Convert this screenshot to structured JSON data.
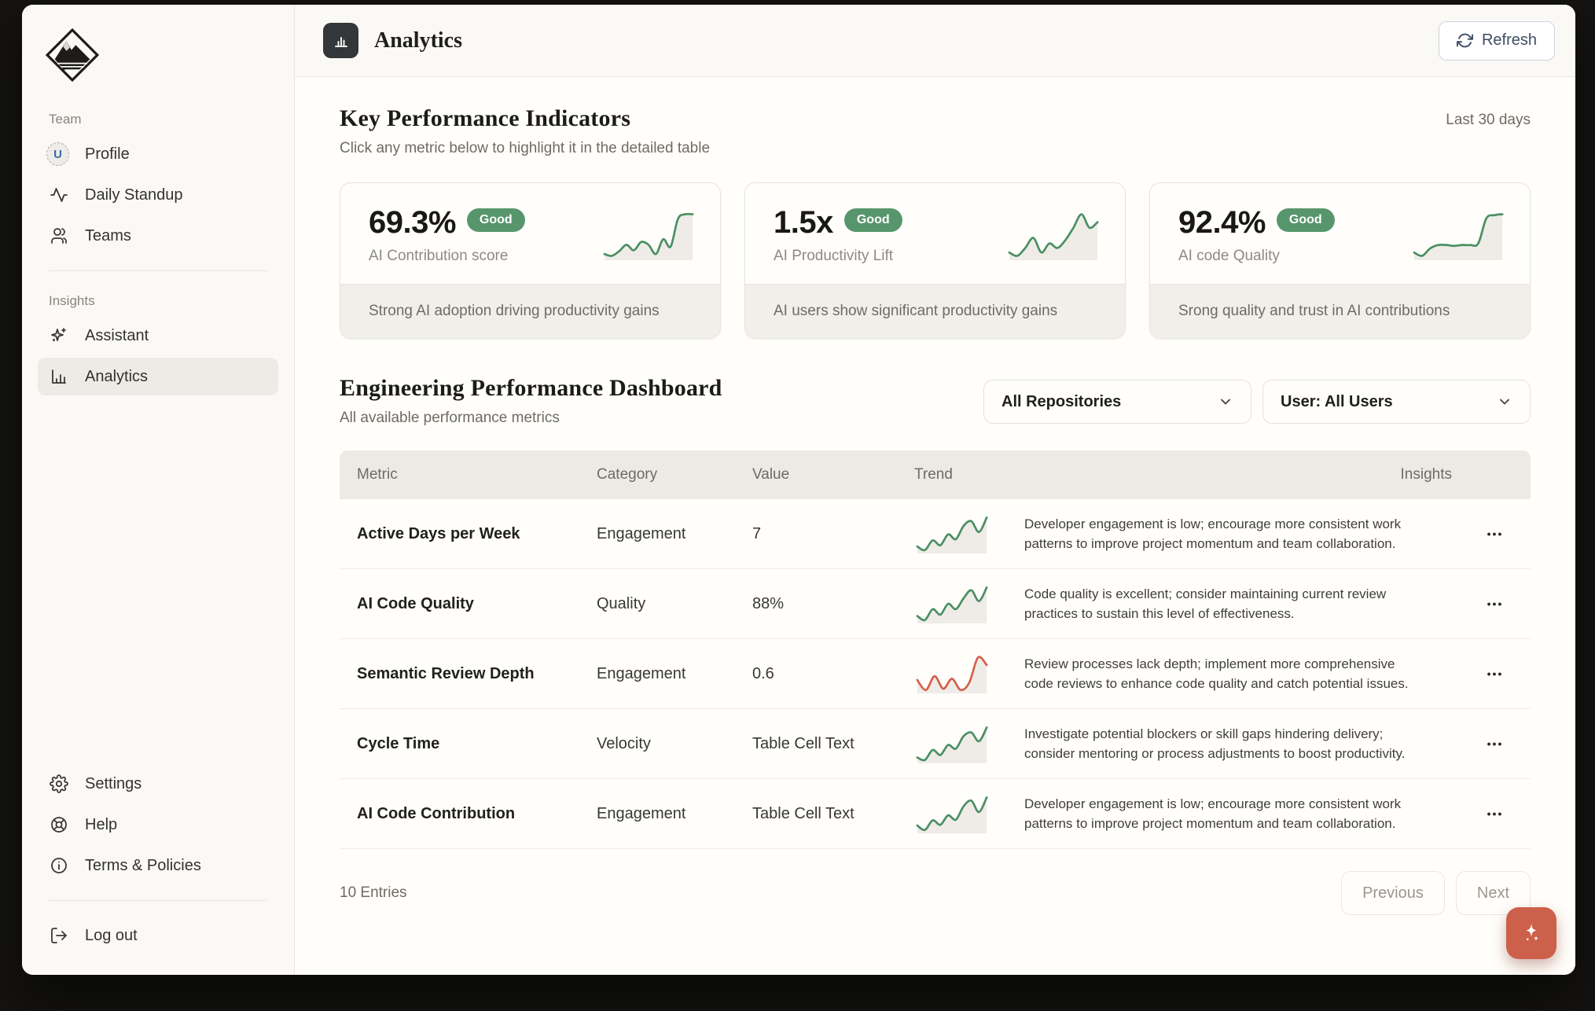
{
  "sidebar": {
    "team_label": "Team",
    "insights_label": "Insights",
    "team_items": [
      {
        "label": "Profile",
        "icon": "user-avatar",
        "avatar_letter": "U"
      },
      {
        "label": "Daily Standup",
        "icon": "activity-pulse"
      },
      {
        "label": "Teams",
        "icon": "users"
      }
    ],
    "insights_items": [
      {
        "label": "Assistant",
        "icon": "sparkles"
      },
      {
        "label": "Analytics",
        "icon": "bar-chart",
        "active": true
      }
    ],
    "footer_items": [
      {
        "label": "Settings",
        "icon": "gear"
      },
      {
        "label": "Help",
        "icon": "life-buoy"
      },
      {
        "label": "Terms & Policies",
        "icon": "info-circle"
      },
      {
        "label": "Log out",
        "icon": "log-out"
      }
    ]
  },
  "header": {
    "title": "Analytics",
    "icon": "bar-chart",
    "refresh_label": "Refresh"
  },
  "kpi_section": {
    "title": "Key Performance Indicators",
    "period": "Last 30 days",
    "subtitle": "Click any metric below to highlight it in the detailed table",
    "badge_color": "#57966c",
    "cards": [
      {
        "value": "69.3%",
        "badge": "Good",
        "label": "AI Contribution score",
        "footer": "Strong AI adoption driving productivity gains",
        "spark": {
          "color": "#4b8f63",
          "values": [
            3.0,
            2.8,
            3.3,
            4.0,
            3.4,
            4.3,
            4.0,
            3.0,
            4.6,
            3.8,
            6.8,
            7.3,
            7.3
          ]
        }
      },
      {
        "value": "1.5x",
        "badge": "Good",
        "label": "AI Productivity Lift",
        "footer": "AI users show significant productivity gains",
        "spark": {
          "color": "#4b8f63",
          "values": [
            3.2,
            2.9,
            3.6,
            4.5,
            3.2,
            4.0,
            3.6,
            4.3,
            5.4,
            6.6,
            5.4,
            5.9
          ]
        }
      },
      {
        "value": "92.4%",
        "badge": "Good",
        "label": "AI code Quality",
        "footer": "Srong quality and trust in AI contributions",
        "spark": {
          "color": "#4b8f63",
          "values": [
            2.4,
            2.0,
            2.9,
            3.3,
            3.3,
            3.2,
            3.3,
            3.3,
            3.5,
            6.5,
            6.9,
            7.0
          ]
        }
      }
    ]
  },
  "dashboard_section": {
    "title": "Engineering Performance Dashboard",
    "subtitle": "All available performance metrics",
    "filters": [
      {
        "label": "All Repositories"
      },
      {
        "label": "User: All Users"
      }
    ]
  },
  "table": {
    "columns": [
      "Metric",
      "Category",
      "Value",
      "Trend",
      "Insights"
    ],
    "menu_label": "•••",
    "rows": [
      {
        "metric": "Active Days per Week",
        "category": "Engagement",
        "value": "7",
        "trend": {
          "color": "#4b8f63",
          "values": [
            3.0,
            2.4,
            4.0,
            3.2,
            5.0,
            4.2,
            6.4,
            7.2,
            5.4,
            7.8
          ]
        },
        "insight": "Developer engagement is low; encourage more consistent work patterns to improve project momentum and team collaboration."
      },
      {
        "metric": "AI Code Quality",
        "category": "Quality",
        "value": "88%",
        "trend": {
          "color": "#4b8f63",
          "values": [
            3.4,
            2.8,
            4.4,
            3.6,
            5.2,
            4.4,
            6.0,
            7.2,
            5.6,
            7.6
          ]
        },
        "insight": "Code quality is excellent; consider maintaining current review practices to sustain this level of effectiveness."
      },
      {
        "metric": "Semantic Review Depth",
        "category": "Engagement",
        "value": "0.6",
        "trend": {
          "color": "#d4604b",
          "values": [
            4.5,
            3.7,
            4.8,
            3.8,
            4.6,
            3.7,
            4.3,
            6.3,
            5.7
          ]
        },
        "insight": "Review processes lack depth; implement more comprehensive code reviews to enhance code quality and catch potential issues."
      },
      {
        "metric": "Cycle Time",
        "category": "Velocity",
        "value": "Table Cell Text",
        "trend": {
          "color": "#4b8f63",
          "values": [
            3.0,
            2.6,
            4.2,
            3.4,
            5.0,
            4.4,
            6.4,
            7.0,
            5.6,
            7.8
          ]
        },
        "insight": "Investigate potential blockers or skill gaps hindering delivery; consider mentoring or process adjustments to boost productivity."
      },
      {
        "metric": "AI Code Contribution",
        "category": "Engagement",
        "value": "Table Cell Text",
        "trend": {
          "color": "#4b8f63",
          "values": [
            3.2,
            2.5,
            4.0,
            3.3,
            4.8,
            4.1,
            6.2,
            7.1,
            5.3,
            7.6
          ]
        },
        "insight": "Developer engagement is low; encourage more consistent work patterns to improve project momentum and team collaboration."
      }
    ]
  },
  "pagination": {
    "entries": "10 Entries",
    "previous": "Previous",
    "next": "Next"
  }
}
